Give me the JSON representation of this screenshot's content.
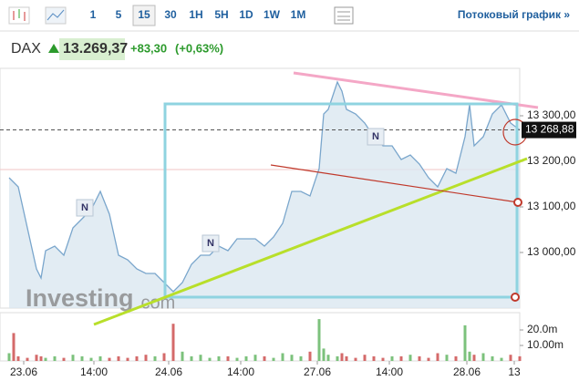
{
  "toolbar": {
    "intervals": [
      "1",
      "5",
      "15",
      "30",
      "1H",
      "5H",
      "1D",
      "1W",
      "1M"
    ],
    "active": "15",
    "stream_link": "Потоковый график »"
  },
  "header": {
    "symbol": "DAX",
    "price": "13.269,37",
    "change": "+83,30",
    "change_pct": "(+0,63%)"
  },
  "chart_data": {
    "type": "area",
    "color": "#7aa6cc",
    "fill": "#dbe7f0",
    "x": [
      0,
      0.5,
      1,
      2,
      3,
      3.5,
      4,
      5,
      6,
      7,
      8,
      9,
      10,
      11,
      12,
      13,
      14,
      15,
      16,
      17,
      18,
      19,
      20,
      21,
      22,
      23,
      24,
      25,
      26,
      27,
      28,
      29,
      30,
      31,
      32,
      33,
      34,
      34.5,
      35,
      36,
      36.5,
      37,
      38,
      39,
      40,
      41,
      42,
      43,
      44,
      45,
      46,
      47,
      48,
      49,
      50,
      50.5,
      51,
      52,
      53,
      54,
      55,
      56
    ],
    "values": [
      13164,
      13154,
      13144,
      13054,
      12964,
      12944,
      13004,
      13014,
      12994,
      13054,
      13074,
      13094,
      13134,
      13084,
      12994,
      12984,
      12964,
      12954,
      12954,
      12934,
      12914,
      12934,
      12974,
      12994,
      12994,
      13014,
      13004,
      13030,
      13030,
      13030,
      13014,
      13034,
      13064,
      13134,
      13134,
      13124,
      13184,
      13304,
      13314,
      13374,
      13354,
      13314,
      13304,
      13284,
      13254,
      13234,
      13234,
      13204,
      13214,
      13194,
      13164,
      13144,
      13184,
      13174,
      13254,
      13324,
      13234,
      13254,
      13304,
      13324,
      13284,
      13269
    ],
    "xlim": [
      0,
      56
    ],
    "xticks": [
      {
        "value": 1.6,
        "label": "23.06"
      },
      {
        "value": 9.3,
        "label": "14:00"
      },
      {
        "value": 17.5,
        "label": "24.06"
      },
      {
        "value": 25.4,
        "label": "14:00"
      },
      {
        "value": 33.8,
        "label": "27.06"
      },
      {
        "value": 41.7,
        "label": "14:00"
      },
      {
        "value": 50.2,
        "label": "28.06"
      },
      {
        "value": 55.4,
        "label": "13"
      }
    ],
    "ylim": [
      12878,
      13404
    ],
    "yticks": [
      {
        "value": 13000,
        "label": "13 000,00"
      },
      {
        "value": 13100,
        "label": "13 100,00"
      },
      {
        "value": 13200,
        "label": "13 200,00"
      },
      {
        "value": 13300,
        "label": "13 300,00"
      }
    ],
    "last_price": {
      "value": 13268.88,
      "label": "13 268,88"
    },
    "markers": [
      "N",
      "N",
      "N"
    ],
    "watermark": [
      "Investing",
      ".com"
    ],
    "volume": {
      "up_color": "#7cc27c",
      "down_color": "#d46a6a",
      "values": [
        5000000,
        18000000,
        3000000,
        2000000,
        4000000,
        3000000,
        2000000,
        3000000,
        2000000,
        4000000,
        3000000,
        2000000,
        3000000,
        2000000,
        3000000,
        2000000,
        3000000,
        4000000,
        3000000,
        5000000,
        24000000,
        6000000,
        3000000,
        4000000,
        2000000,
        3000000,
        3000000,
        2000000,
        3000000,
        4000000,
        3000000,
        2000000,
        5000000,
        4000000,
        3000000,
        6000000,
        27000000,
        8000000,
        4000000,
        3000000,
        5000000,
        3000000,
        2000000,
        4000000,
        3000000,
        2000000,
        3000000,
        3000000,
        4000000,
        3000000,
        2000000,
        5000000,
        4000000,
        3000000,
        23000000,
        6000000,
        4000000,
        5000000,
        3000000,
        2000000,
        4000000,
        3000000
      ],
      "ylim": [
        0,
        30000000
      ],
      "yticks": [
        {
          "value": 20000000,
          "label": "20.0m"
        },
        {
          "value": 10000000,
          "label": "10.00m"
        }
      ]
    }
  }
}
